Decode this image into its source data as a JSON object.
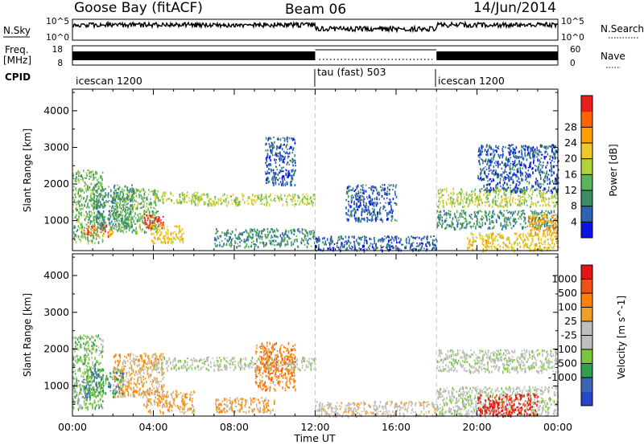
{
  "header": {
    "station": "Goose Bay (fitACF)",
    "beam": "Beam 06",
    "date": "14/Jun/2014"
  },
  "top_panels": {
    "nsky_label": "N.Sky",
    "nsky_ticks": [
      "10^5",
      "10^0"
    ],
    "nsearch_label": "N.Search",
    "nsearch_ticks": [
      "10^5",
      "10^0"
    ],
    "freq_label": "Freq.",
    "freq_unit": "[MHz]",
    "freq_ticks": [
      "18",
      "8"
    ],
    "nave_label": "Nave",
    "nave_ticks": [
      "60",
      "0"
    ],
    "cpid_label": "CPID",
    "cpid_segments": [
      {
        "label": "icescan 1200",
        "start": 0,
        "end": 12
      },
      {
        "label": "tau (fast) 503",
        "start": 12,
        "end": 18
      },
      {
        "label": "icescan 1200",
        "start": 18,
        "end": 24
      }
    ]
  },
  "chart_data": [
    {
      "type": "heatmap",
      "title": "",
      "xlabel": "",
      "ylabel": "Slant Range [km]",
      "xlim": [
        0,
        24
      ],
      "ylim": [
        180,
        4590
      ],
      "x_ticks": [
        "00:00",
        "04:00",
        "08:00",
        "12:00",
        "16:00",
        "20:00",
        "00:00"
      ],
      "y_ticks": [
        1000,
        2000,
        3000,
        4000
      ],
      "colorbar": {
        "label": "Power [dB]",
        "ticks": [
          "4",
          "8",
          "12",
          "16",
          "20",
          "24",
          "28"
        ],
        "colors": [
          "#0a14e6",
          "#2c64b4",
          "#3c8c64",
          "#5ab45a",
          "#b4d23c",
          "#f0c828",
          "#ffa000",
          "#ff6400",
          "#e61e1e"
        ]
      },
      "regions": [
        {
          "t": [
            0.0,
            1.5
          ],
          "r": [
            400,
            2400
          ],
          "level": 3
        },
        {
          "t": [
            0.5,
            2.0
          ],
          "r": [
            600,
            900
          ],
          "level": 7
        },
        {
          "t": [
            1.0,
            3.0
          ],
          "r": [
            800,
            2000
          ],
          "level": 2
        },
        {
          "t": [
            2.0,
            4.2
          ],
          "r": [
            700,
            1900
          ],
          "level": 3
        },
        {
          "t": [
            3.5,
            4.5
          ],
          "r": [
            800,
            1200
          ],
          "level": 8
        },
        {
          "t": [
            3.8,
            5.5
          ],
          "r": [
            400,
            900
          ],
          "level": 5
        },
        {
          "t": [
            4.0,
            6.5
          ],
          "r": [
            1500,
            1800
          ],
          "level": 4
        },
        {
          "t": [
            6.0,
            12.0
          ],
          "r": [
            1450,
            1750
          ],
          "level": 4
        },
        {
          "t": [
            7.0,
            12.0
          ],
          "r": [
            300,
            800
          ],
          "level": 2
        },
        {
          "t": [
            9.5,
            11.0
          ],
          "r": [
            2000,
            3300
          ],
          "level": 1
        },
        {
          "t": [
            12.0,
            18.0
          ],
          "r": [
            200,
            600
          ],
          "level": 1
        },
        {
          "t": [
            13.5,
            16.0
          ],
          "r": [
            1000,
            2000
          ],
          "level": 1
        },
        {
          "t": [
            18.0,
            24.0
          ],
          "r": [
            1400,
            1900
          ],
          "level": 4
        },
        {
          "t": [
            18.0,
            24.0
          ],
          "r": [
            800,
            1300
          ],
          "level": 2
        },
        {
          "t": [
            20.0,
            24.0
          ],
          "r": [
            1800,
            3100
          ],
          "level": 1
        },
        {
          "t": [
            22.5,
            24.0
          ],
          "r": [
            600,
            1200
          ],
          "level": 6
        },
        {
          "t": [
            19.5,
            24.0
          ],
          "r": [
            200,
            700
          ],
          "level": 5
        }
      ]
    },
    {
      "type": "heatmap",
      "title": "",
      "xlabel": "Time UT",
      "ylabel": "Slant Range [km]",
      "xlim": [
        0,
        24
      ],
      "ylim": [
        180,
        4590
      ],
      "x_ticks": [
        "00:00",
        "04:00",
        "08:00",
        "12:00",
        "16:00",
        "20:00",
        "00:00"
      ],
      "y_ticks": [
        1000,
        2000,
        3000,
        4000
      ],
      "colorbar": {
        "label": "Velocity [m s^-1]",
        "ticks": [
          "1000",
          "500",
          "100",
          "25",
          "-25",
          "-100",
          "-500",
          "-1000"
        ],
        "colors": [
          "#2846c8",
          "#3c64b4",
          "#32a050",
          "#78c83c",
          "#bebebe",
          "#bebebe",
          "#f0a028",
          "#ff8200",
          "#f05014",
          "#e61414"
        ]
      },
      "regions": [
        {
          "t": [
            0.0,
            1.5
          ],
          "r": [
            400,
            2400
          ],
          "level": 3
        },
        {
          "t": [
            0.5,
            2.5
          ],
          "r": [
            700,
            1500
          ],
          "level": 2
        },
        {
          "t": [
            2.0,
            4.5
          ],
          "r": [
            700,
            1900
          ],
          "level": 6
        },
        {
          "t": [
            3.5,
            6.0
          ],
          "r": [
            300,
            900
          ],
          "level": 6
        },
        {
          "t": [
            4.0,
            12.0
          ],
          "r": [
            1450,
            1800
          ],
          "level": 4
        },
        {
          "t": [
            7.0,
            10.0
          ],
          "r": [
            300,
            700
          ],
          "level": 6
        },
        {
          "t": [
            9.0,
            11.0
          ],
          "r": [
            900,
            2200
          ],
          "level": 7
        },
        {
          "t": [
            12.0,
            18.0
          ],
          "r": [
            200,
            600
          ],
          "level": 5
        },
        {
          "t": [
            18.0,
            24.0
          ],
          "r": [
            1400,
            2000
          ],
          "level": 4
        },
        {
          "t": [
            18.0,
            24.0
          ],
          "r": [
            200,
            1000
          ],
          "level": 4
        },
        {
          "t": [
            20.0,
            23.0
          ],
          "r": [
            200,
            800
          ],
          "level": 9
        }
      ]
    }
  ]
}
